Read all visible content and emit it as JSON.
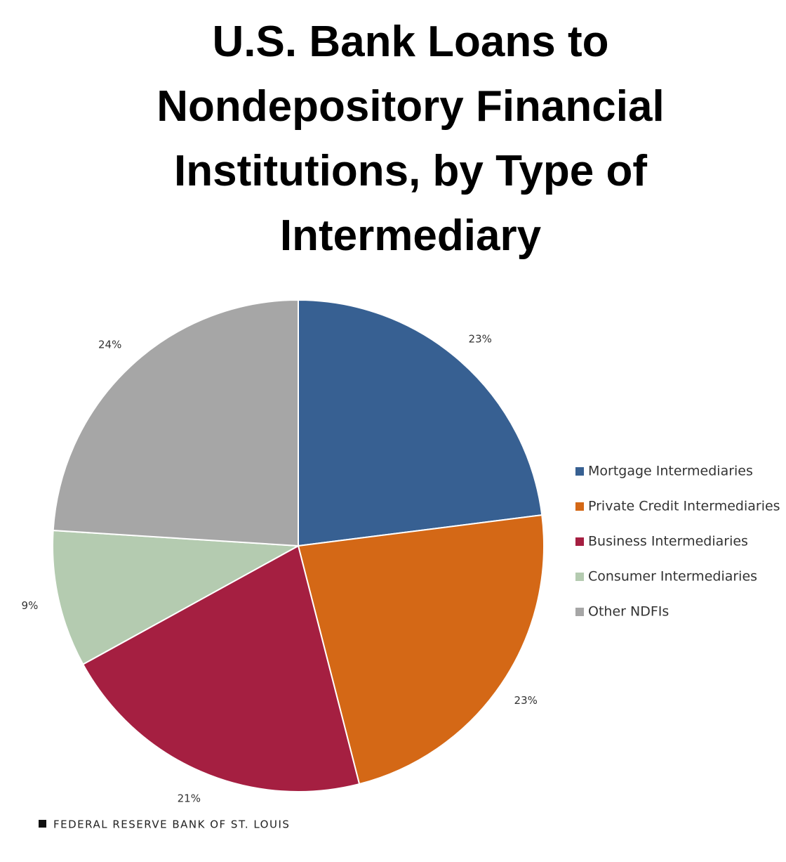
{
  "chart_data": {
    "type": "pie",
    "title": "U.S. Bank Loans to Nondepository Financial Institutions, by Type of Intermediary",
    "categories": [
      "Mortgage Intermediaries",
      "Private Credit Intermediaries",
      "Business Intermediaries",
      "Consumer Intermediaries",
      "Other NDFIs"
    ],
    "values": [
      23,
      23,
      21,
      9,
      24
    ],
    "value_labels": [
      "23%",
      "23%",
      "21%",
      "9%",
      "24%"
    ],
    "colors": [
      "#376092",
      "#d46816",
      "#a51f41",
      "#b4cbb0",
      "#a6a6a6"
    ],
    "legend": "right",
    "source": "FEDERAL RESERVE BANK OF ST. LOUIS"
  }
}
